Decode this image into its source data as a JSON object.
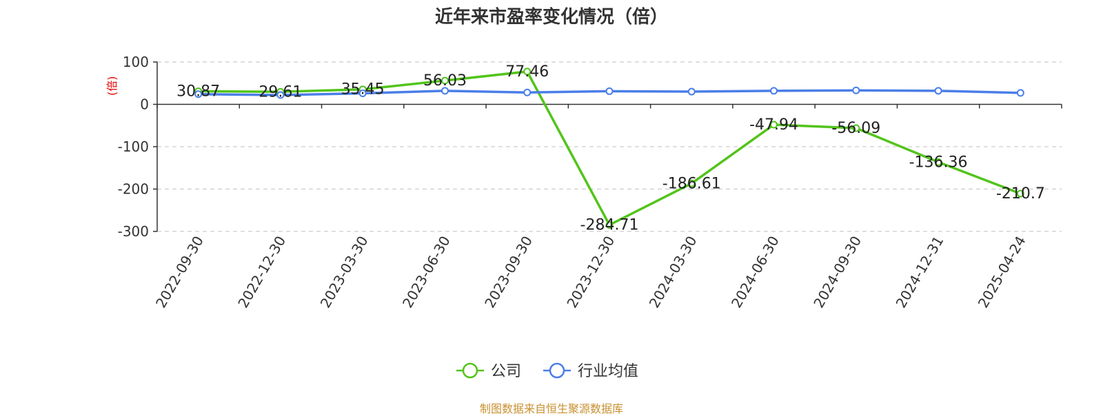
{
  "chart_data": {
    "type": "line",
    "title": "近年来市盈率变化情况（倍）",
    "ylabel": "(倍)",
    "categories": [
      "2022-09-30",
      "2022-12-30",
      "2023-03-30",
      "2023-06-30",
      "2023-09-30",
      "2023-12-30",
      "2024-03-30",
      "2024-06-30",
      "2024-09-30",
      "2024-12-31",
      "2025-04-24"
    ],
    "ylim": [
      -300,
      100
    ],
    "yticks": [
      "100",
      "0",
      "-100",
      "-200",
      "-300"
    ],
    "grid": true,
    "legend_position": "bottom",
    "series": [
      {
        "name": "公司",
        "color": "#52c41a",
        "values": [
          30.87,
          29.61,
          35.45,
          56.03,
          77.46,
          -284.71,
          -186.61,
          -47.94,
          -56.09,
          -136.36,
          -210.7
        ],
        "labels": [
          "30.87",
          "29.61",
          "35.45",
          "56.03",
          "77.46",
          "-284.71",
          "-186.61",
          "-47.94",
          "-56.09",
          "-136.36",
          "-210.7"
        ]
      },
      {
        "name": "行业均值",
        "color": "#4a7ee8",
        "values": [
          24,
          22,
          26,
          32,
          28,
          31,
          30,
          32,
          33,
          32,
          27
        ]
      }
    ]
  },
  "source_text": "制图数据来自恒生聚源数据库"
}
